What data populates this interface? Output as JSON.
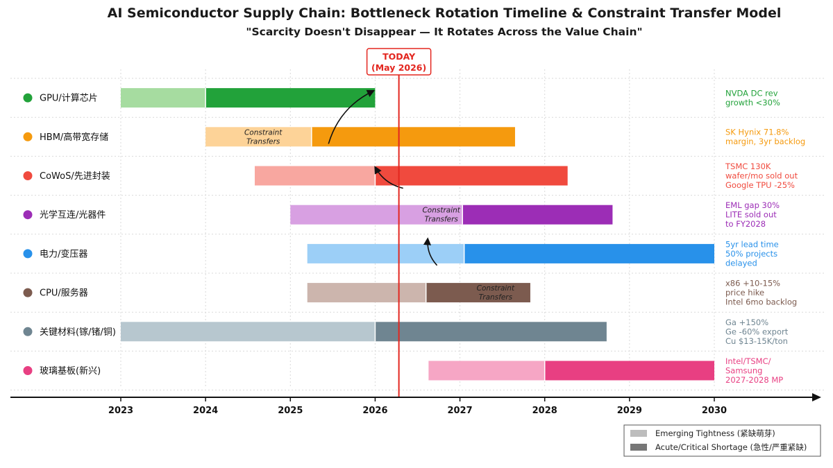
{
  "chart_data": {
    "type": "bar",
    "subtype": "timeline-gantt",
    "title": "AI Semiconductor Supply Chain: Bottleneck Rotation Timeline & Constraint Transfer Model",
    "subtitle": "\"Scarcity Doesn't Disappear — It Rotates Across the Value Chain\"",
    "xlim": [
      2023,
      2030
    ],
    "x_ticks": [
      "2023",
      "2024",
      "2025",
      "2026",
      "2027",
      "2028",
      "2029",
      "2030"
    ],
    "today": {
      "value": 2026.28,
      "label_line1": "TODAY",
      "label_line2": "(May 2026)"
    },
    "categories": [
      {
        "label": "GPU/计算芯片",
        "color": "#22a23a",
        "light_color": "#a6dca0",
        "emerging": [
          2023.0,
          2024.0
        ],
        "acute": [
          2024.0,
          2026.0
        ],
        "note": [
          "NVDA DC rev",
          "growth <30%"
        ]
      },
      {
        "label": "HBM/高带宽存储",
        "color": "#f59a0e",
        "light_color": "#fdd398",
        "emerging": [
          2024.0,
          2025.25
        ],
        "acute": [
          2025.25,
          2027.65
        ],
        "note": [
          "SK Hynix 71.8%",
          "margin, 3yr backlog"
        ]
      },
      {
        "label": "CoWoS/先进封装",
        "color": "#f04a3e",
        "light_color": "#f8a7a0",
        "emerging": [
          2024.58,
          2026.0
        ],
        "acute": [
          2026.0,
          2028.27
        ],
        "note": [
          "TSMC 130K",
          "wafer/mo sold out",
          "Google TPU -25%"
        ]
      },
      {
        "label": "光学互连/光器件",
        "color": "#9c2db6",
        "light_color": "#d8a0e2",
        "emerging": [
          2025.0,
          2027.03
        ],
        "acute": [
          2027.03,
          2028.8
        ],
        "note": [
          "EML gap 30%",
          "LITE sold out",
          "to FY2028"
        ]
      },
      {
        "label": "电力/变压器",
        "color": "#2891ea",
        "light_color": "#9ccff7",
        "emerging": [
          2025.2,
          2027.05
        ],
        "acute": [
          2027.05,
          2030.0
        ],
        "note": [
          "5yr lead time",
          "50% projects",
          "delayed"
        ]
      },
      {
        "label": "CPU/服务器",
        "color": "#7c5b4f",
        "light_color": "#ccb5ad",
        "emerging": [
          2025.2,
          2026.6
        ],
        "acute": [
          2026.6,
          2027.83
        ],
        "note": [
          "x86 +10-15%",
          "price hike",
          "Intel 6mo backlog"
        ]
      },
      {
        "label": "关键材料(镓/锗/铜)",
        "color": "#6f8591",
        "light_color": "#b7c7cf",
        "emerging": [
          2023.0,
          2026.0
        ],
        "acute": [
          2026.0,
          2028.73
        ],
        "note": [
          "Ga +150%",
          "Ge -60% export",
          "Cu $13-15K/ton"
        ]
      },
      {
        "label": "玻璃基板(新兴)",
        "color": "#e83f82",
        "light_color": "#f6a6c5",
        "emerging": [
          2026.63,
          2028.0
        ],
        "acute": [
          2028.0,
          2030.0
        ],
        "note": [
          "Intel/TSMC/",
          "Samsung",
          "2027-2028 MP"
        ]
      }
    ],
    "annotations": [
      {
        "text": [
          "Constraint",
          "Transfers"
        ],
        "row": 1,
        "x": 2024.68
      },
      {
        "text": [
          "Constraint",
          "Transfers"
        ],
        "row": 3,
        "x": 2026.78
      },
      {
        "text": [
          "Constraint",
          "Transfers"
        ],
        "row": 5,
        "x": 2027.42
      }
    ],
    "arrows": [
      {
        "from": [
          2025.45,
          1.68
        ],
        "to": [
          2025.98,
          0.32
        ]
      },
      {
        "from": [
          2026.33,
          2.82
        ],
        "to": [
          2026.0,
          2.28
        ]
      },
      {
        "from": [
          2026.73,
          4.8
        ],
        "to": [
          2026.62,
          4.12
        ]
      }
    ],
    "legend": {
      "placement": "bottom-right",
      "items": [
        {
          "label": "Emerging Tightness (紧缺萌芽)",
          "color": "#bdbdbd"
        },
        {
          "label": "Acute/Critical Shortage (急性/严重紧缺)",
          "color": "#777777"
        }
      ]
    },
    "grid": true
  }
}
